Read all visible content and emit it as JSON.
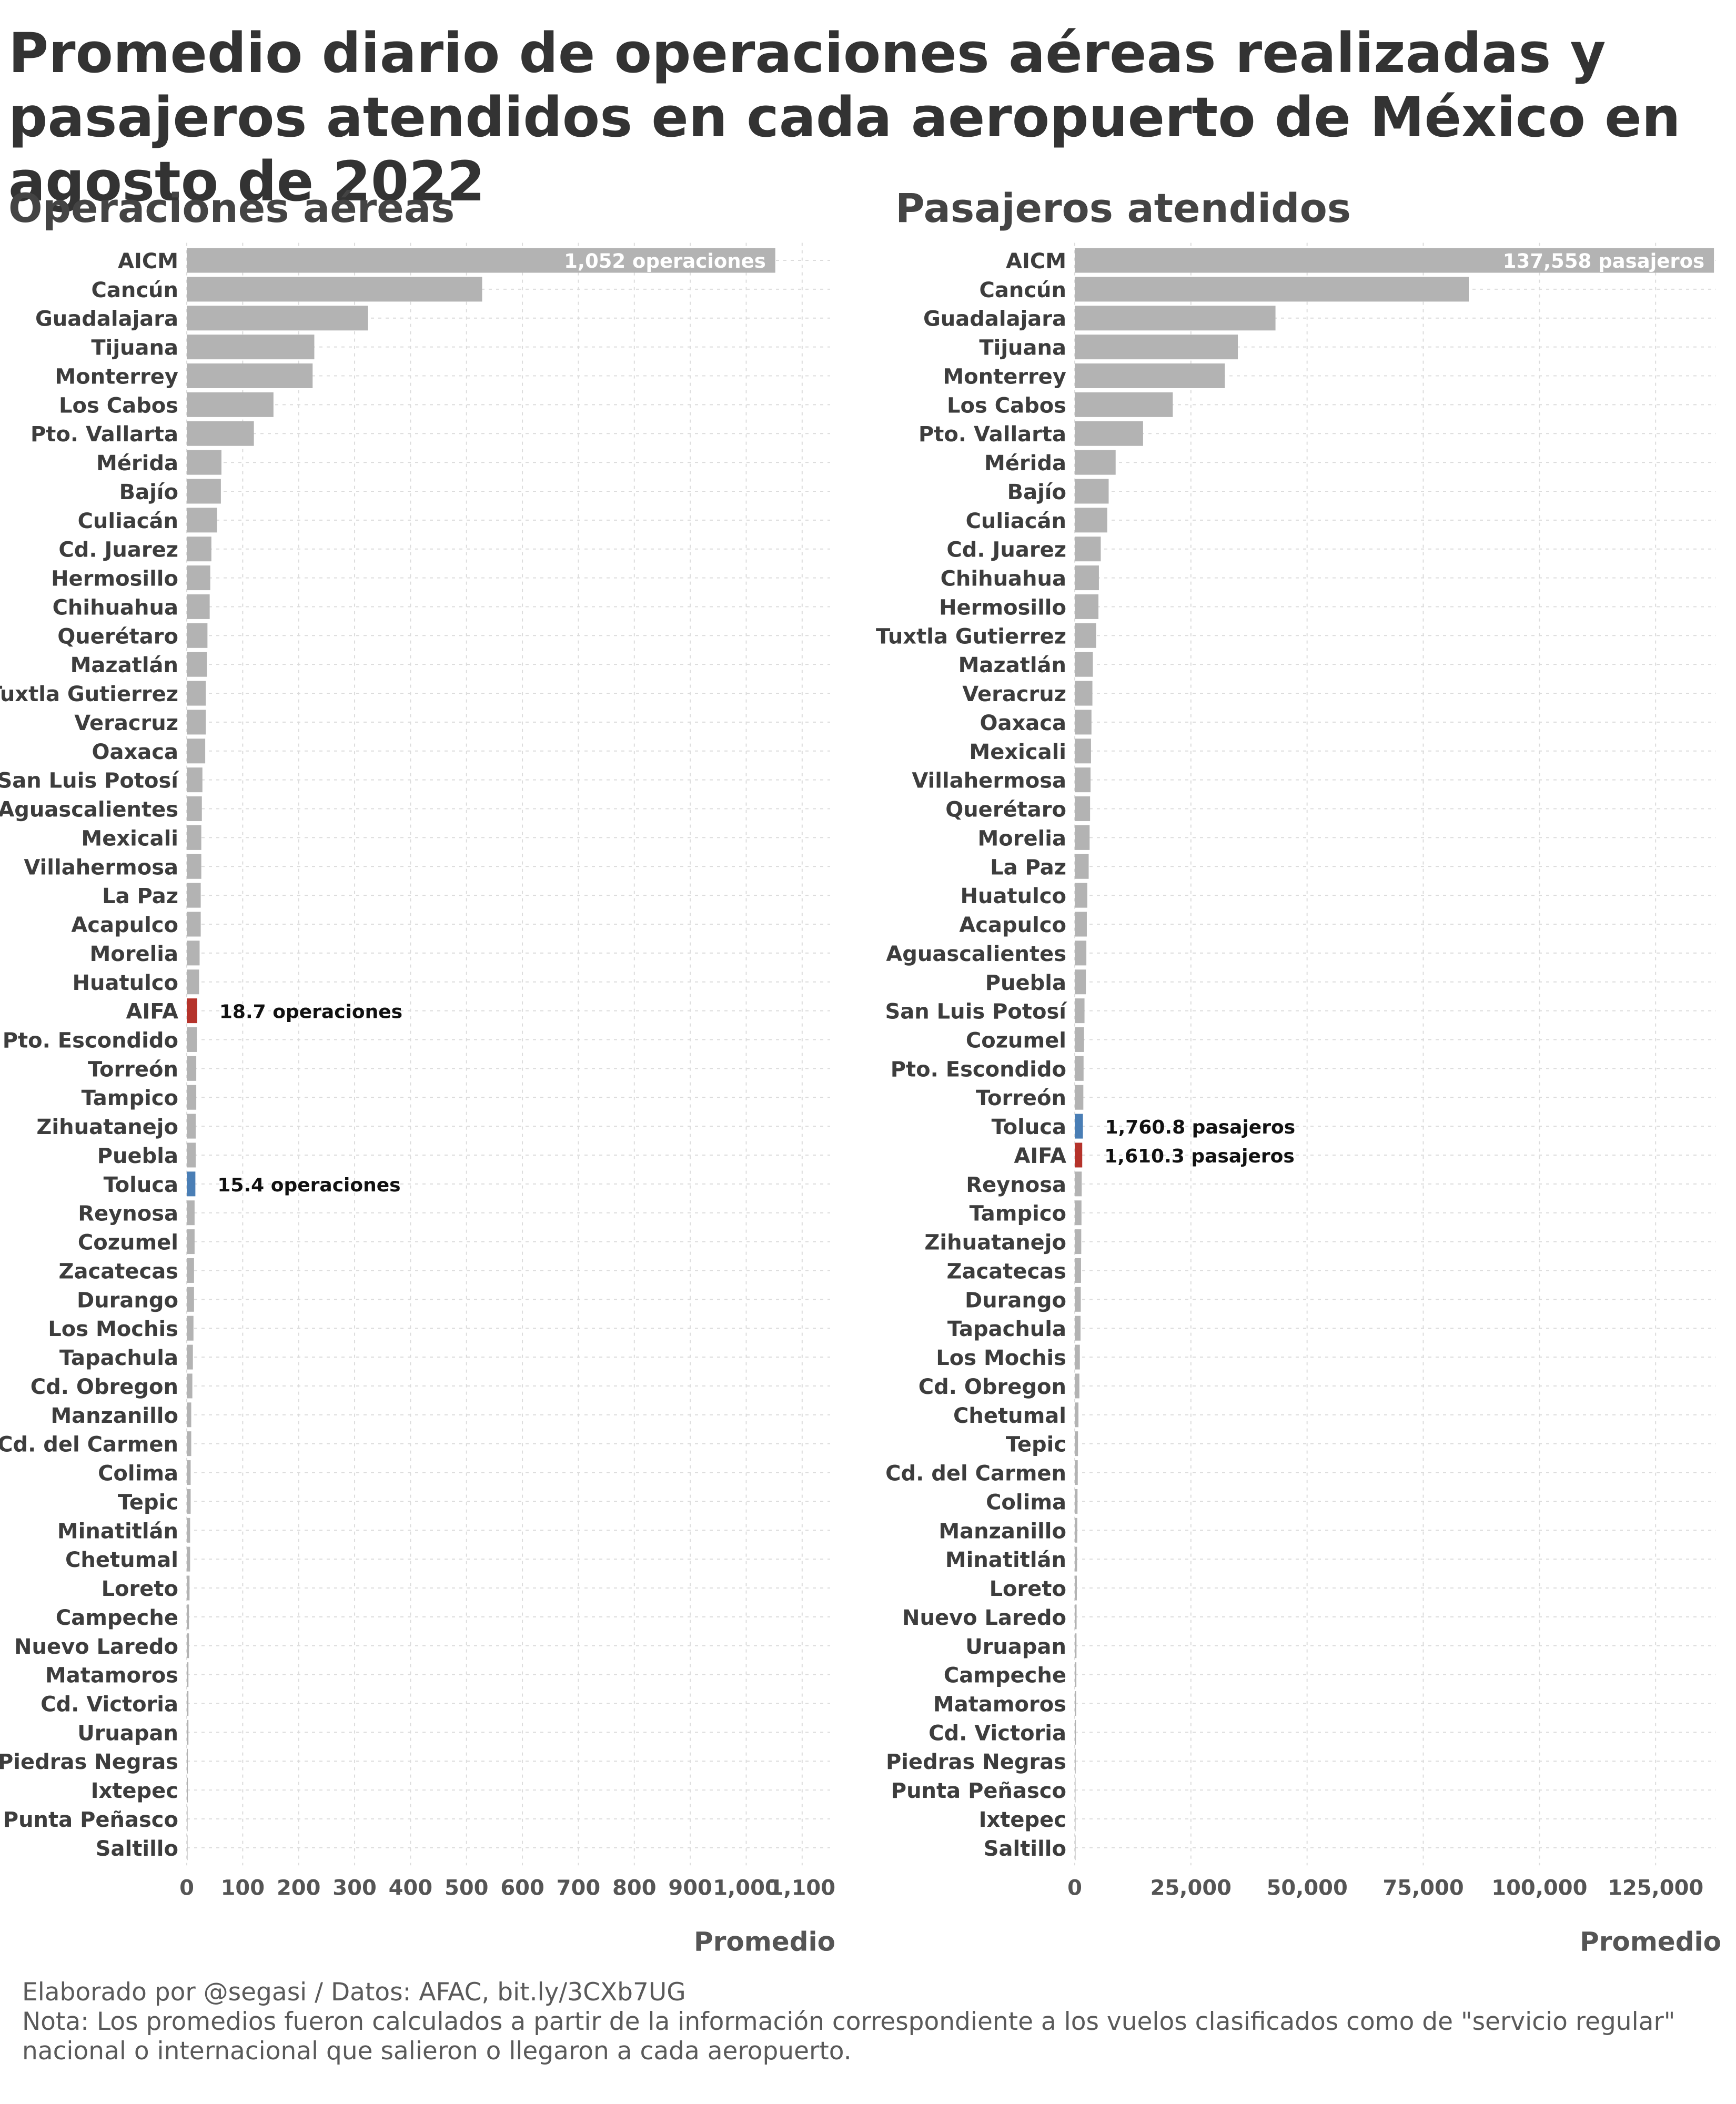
{
  "title": "Promedio diario de operaciones aéreas realizadas y pasajeros atendidos en cada aeropuerto de México en agosto de 2022",
  "footer": {
    "credit": "Elaborado por @segasi / Datos: AFAC, bit.ly/3CXb7UG",
    "note": "Nota: Los promedios fueron calculados a partir de la información correspondiente a los vuelos clasificados como de \"servicio regular\" nacional o internacional que salieron o llegaron a cada aeropuerto."
  },
  "colors": {
    "bar": "#b3b3b3",
    "aifa": "#b5332b",
    "toluca": "#4a7eb5",
    "grid": "#dcdcdc",
    "text": "#3d3d3d"
  },
  "chart_data": [
    {
      "type": "bar",
      "orientation": "horizontal",
      "title": "Operaciones aéreas",
      "xlabel": "Promedio",
      "xlim": [
        0,
        1150
      ],
      "xticks": [
        0,
        100,
        200,
        300,
        400,
        500,
        600,
        700,
        800,
        900,
        1000,
        1100
      ],
      "xtick_labels": [
        "0",
        "100",
        "200",
        "300",
        "400",
        "500",
        "600",
        "700",
        "800",
        "900",
        "1,000",
        "1,100"
      ],
      "grid": true,
      "categories": [
        "AICM",
        "Cancún",
        "Guadalajara",
        "Tijuana",
        "Monterrey",
        "Los Cabos",
        "Pto. Vallarta",
        "Mérida",
        "Bajío",
        "Culiacán",
        "Cd. Juarez",
        "Hermosillo",
        "Chihuahua",
        "Querétaro",
        "Mazatlán",
        "Tuxtla Gutierrez",
        "Veracruz",
        "Oaxaca",
        "San Luis Potosí",
        "Aguascalientes",
        "Mexicali",
        "Villahermosa",
        "La Paz",
        "Acapulco",
        "Morelia",
        "Huatulco",
        "AIFA",
        "Pto. Escondido",
        "Torreón",
        "Tampico",
        "Zihuatanejo",
        "Puebla",
        "Toluca",
        "Reynosa",
        "Cozumel",
        "Zacatecas",
        "Durango",
        "Los Mochis",
        "Tapachula",
        "Cd. Obregon",
        "Manzanillo",
        "Cd. del Carmen",
        "Colima",
        "Tepic",
        "Minatitlán",
        "Chetumal",
        "Loreto",
        "Campeche",
        "Nuevo Laredo",
        "Matamoros",
        "Cd. Victoria",
        "Uruapan",
        "Piedras Negras",
        "Ixtepec",
        "Punta Peñasco",
        "Saltillo"
      ],
      "values": [
        1052,
        528,
        324,
        228,
        225,
        155,
        120,
        62,
        61,
        54,
        44,
        42,
        41,
        37,
        36,
        34,
        34,
        33,
        28,
        27,
        26,
        26,
        25,
        25,
        23,
        22,
        18.7,
        18,
        17,
        17,
        16,
        16,
        15.4,
        14,
        14,
        13,
        13,
        12,
        11,
        10,
        8,
        8,
        7,
        7,
        6,
        6,
        5,
        4,
        4,
        3,
        3,
        3,
        2,
        2,
        1.5,
        1
      ],
      "highlight": {
        "AIFA": "aifa",
        "Toluca": "toluca"
      },
      "annotations": [
        {
          "category": "AICM",
          "text": "1,052 operaciones",
          "position": "inside"
        },
        {
          "category": "AIFA",
          "text": "18.7 operaciones",
          "position": "outside"
        },
        {
          "category": "Toluca",
          "text": "15.4 operaciones",
          "position": "outside"
        }
      ]
    },
    {
      "type": "bar",
      "orientation": "horizontal",
      "title": "Pasajeros atendidos",
      "xlabel": "Promedio",
      "xlim": [
        0,
        138000
      ],
      "xticks": [
        0,
        25000,
        50000,
        75000,
        100000,
        125000
      ],
      "xtick_labels": [
        "0",
        "25,000",
        "50,000",
        "75,000",
        "100,000",
        "125,000"
      ],
      "grid": true,
      "categories": [
        "AICM",
        "Cancún",
        "Guadalajara",
        "Tijuana",
        "Monterrey",
        "Los Cabos",
        "Pto. Vallarta",
        "Mérida",
        "Bajío",
        "Culiacán",
        "Cd. Juarez",
        "Chihuahua",
        "Hermosillo",
        "Tuxtla Gutierrez",
        "Mazatlán",
        "Veracruz",
        "Oaxaca",
        "Mexicali",
        "Villahermosa",
        "Querétaro",
        "Morelia",
        "La Paz",
        "Huatulco",
        "Acapulco",
        "Aguascalientes",
        "Puebla",
        "San Luis Potosí",
        "Cozumel",
        "Pto. Escondido",
        "Torreón",
        "Toluca",
        "AIFA",
        "Reynosa",
        "Tampico",
        "Zihuatanejo",
        "Zacatecas",
        "Durango",
        "Tapachula",
        "Los Mochis",
        "Cd. Obregon",
        "Chetumal",
        "Tepic",
        "Cd. del Carmen",
        "Colima",
        "Manzanillo",
        "Minatitlán",
        "Loreto",
        "Nuevo Laredo",
        "Uruapan",
        "Campeche",
        "Matamoros",
        "Cd. Victoria",
        "Piedras Negras",
        "Punta Peñasco",
        "Ixtepec",
        "Saltillo"
      ],
      "values": [
        137558,
        84800,
        43200,
        35100,
        32300,
        21100,
        14700,
        8800,
        7300,
        7000,
        5600,
        5200,
        5100,
        4600,
        3900,
        3800,
        3600,
        3500,
        3400,
        3300,
        3200,
        3000,
        2700,
        2600,
        2500,
        2400,
        2100,
        2000,
        1900,
        1850,
        1760.8,
        1610.3,
        1500,
        1450,
        1400,
        1350,
        1300,
        1250,
        1100,
        1000,
        800,
        700,
        650,
        600,
        550,
        500,
        450,
        400,
        380,
        350,
        300,
        250,
        200,
        150,
        100,
        50
      ],
      "highlight": {
        "AIFA": "aifa",
        "Toluca": "toluca"
      },
      "annotations": [
        {
          "category": "AICM",
          "text": "137,558 pasajeros",
          "position": "inside"
        },
        {
          "category": "Toluca",
          "text": "1,760.8 pasajeros",
          "position": "outside"
        },
        {
          "category": "AIFA",
          "text": "1,610.3 pasajeros",
          "position": "outside"
        }
      ]
    }
  ]
}
